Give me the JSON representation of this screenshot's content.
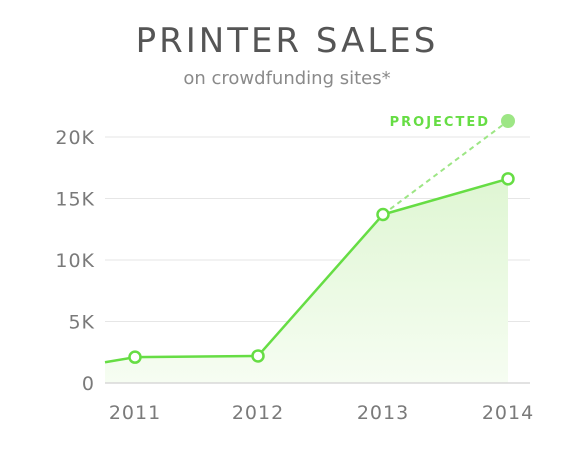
{
  "title": "PRINTER SALES",
  "subtitle": "on crowdfunding sites*",
  "colors": {
    "line": "#66dd44",
    "fill": "#e9f9e2",
    "grid": "#e6e6e6",
    "axis": "#d8d8d8",
    "projected": "#9de685"
  },
  "chart_data": {
    "type": "area",
    "title": "PRINTER SALES",
    "subtitle": "on crowdfunding sites*",
    "x": [
      "2011",
      "2012",
      "2013",
      "2014"
    ],
    "xlabel": "",
    "ylabel": "",
    "ylim": [
      0,
      20000
    ],
    "yticks": [
      0,
      5000,
      10000,
      15000,
      20000
    ],
    "ytick_labels": [
      "0",
      "5K",
      "10K",
      "15K",
      "20K"
    ],
    "grid": true,
    "series": [
      {
        "values": [
          2100,
          2200,
          13700,
          16600
        ]
      }
    ],
    "projected": {
      "label": "PROJECTED",
      "x": [
        "2013",
        "2014"
      ],
      "values": [
        13700,
        21300
      ]
    }
  }
}
